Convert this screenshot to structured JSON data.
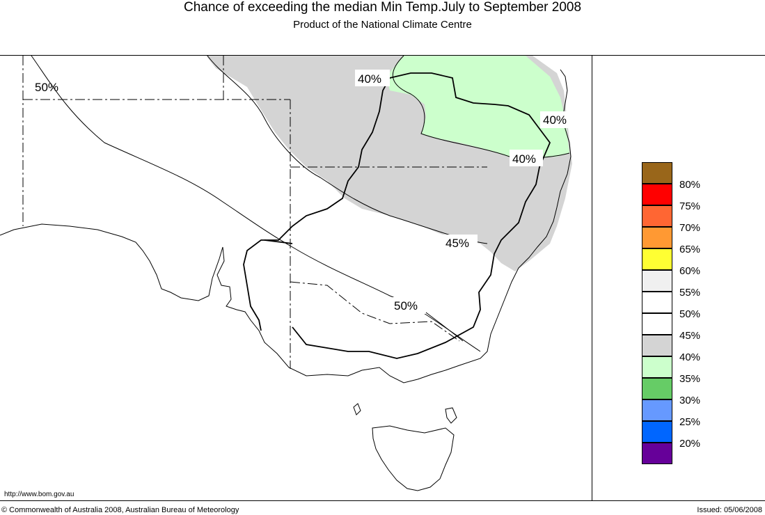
{
  "title": "Chance of exceeding the median Min Temp.July to September 2008",
  "subtitle": "Product of the National Climate Centre",
  "map_labels": {
    "l1": "50%",
    "l2": "40%",
    "l3": "40%",
    "l4": "40%",
    "l5": "45%",
    "l6": "50%"
  },
  "legend": [
    {
      "label": "80%",
      "color": "#99661a"
    },
    {
      "label": "75%",
      "color": "#ff0000"
    },
    {
      "label": "70%",
      "color": "#ff6633"
    },
    {
      "label": "65%",
      "color": "#ff9933"
    },
    {
      "label": "60%",
      "color": "#ffff33"
    },
    {
      "label": "55%",
      "color": "#f0f0f0"
    },
    {
      "label": "50%",
      "color": "#ffffff"
    },
    {
      "label": "45%",
      "color": "#ffffff"
    },
    {
      "label": "40%",
      "color": "#d4d4d4"
    },
    {
      "label": "35%",
      "color": "#ccffcc"
    },
    {
      "label": "30%",
      "color": "#66cc66"
    },
    {
      "label": "25%",
      "color": "#6699ff"
    },
    {
      "label": "20%",
      "color": "#0066ff"
    },
    {
      "label": "",
      "color": "#660099"
    }
  ],
  "url": "http://www.bom.gov.au",
  "copyright": "© Commonwealth of Australia 2008, Australian Bureau of Meteorology",
  "issued": "Issued: 05/06/2008"
}
